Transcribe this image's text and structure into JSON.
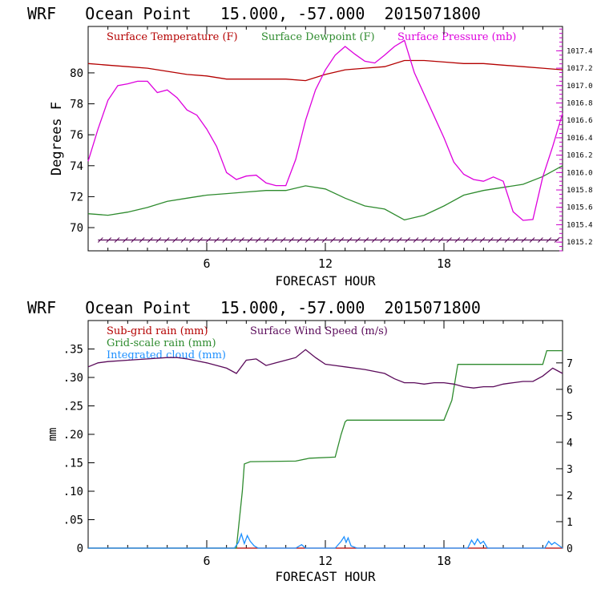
{
  "chart_data": [
    {
      "type": "line",
      "title": "WRF   Ocean Point   15.000, -57.000  2015071800",
      "xlabel": "FORECAST HOUR",
      "ylabel": "Degrees F",
      "xlim": [
        0,
        24
      ],
      "ylim": [
        68.5,
        83
      ],
      "y2lim": [
        1015.1,
        1017.68
      ],
      "x_ticks": [
        6,
        12,
        18
      ],
      "y_ticks": [
        70,
        72,
        74,
        76,
        78,
        80
      ],
      "y2_ticks": [
        1015.2,
        1015.4,
        1015.6,
        1015.8,
        1016.0,
        1016.2,
        1016.4,
        1016.6,
        1016.8,
        1017.0,
        1017.2,
        1017.4
      ],
      "legend": "top-inside",
      "colors": {
        "frame": "#000000",
        "right_axis": "#cc00cc"
      },
      "series": [
        {
          "name": "Surface Temperature (F)",
          "color": "#b40000",
          "axis": "left",
          "x": [
            0,
            1,
            2,
            3,
            4,
            5,
            6,
            7,
            8,
            9,
            10,
            11,
            12,
            13,
            14,
            15,
            16,
            17,
            18,
            19,
            20,
            21,
            22,
            23,
            24
          ],
          "y": [
            80.6,
            80.5,
            80.4,
            80.3,
            80.1,
            79.9,
            79.8,
            79.6,
            79.6,
            79.6,
            79.6,
            79.5,
            79.9,
            80.2,
            80.3,
            80.4,
            80.8,
            80.8,
            80.7,
            80.6,
            80.6,
            80.5,
            80.4,
            80.3,
            80.2
          ]
        },
        {
          "name": "Surface Dewpoint (F)",
          "color": "#2e8b2e",
          "axis": "left",
          "x": [
            0,
            1,
            2,
            3,
            4,
            5,
            6,
            7,
            8,
            9,
            10,
            11,
            12,
            13,
            14,
            15,
            16,
            17,
            18,
            19,
            20,
            21,
            22,
            23,
            24
          ],
          "y": [
            70.9,
            70.8,
            71.0,
            71.3,
            71.7,
            71.9,
            72.1,
            72.2,
            72.3,
            72.4,
            72.4,
            72.7,
            72.5,
            71.9,
            71.4,
            71.2,
            70.5,
            70.8,
            71.4,
            72.1,
            72.4,
            72.6,
            72.8,
            73.3,
            74.0
          ]
        },
        {
          "name": "Surface Pressure (mb)",
          "color": "#dd00dd",
          "axis": "right",
          "x": [
            0,
            0.5,
            1,
            1.5,
            2,
            2.5,
            3,
            3.5,
            4,
            4.5,
            5,
            5.5,
            6,
            6.5,
            7,
            7.5,
            8,
            8.5,
            9,
            9.5,
            10,
            10.5,
            11,
            11.5,
            12,
            12.5,
            13,
            13.5,
            14,
            14.5,
            15,
            15.5,
            16,
            16.5,
            17,
            17.5,
            18,
            18.5,
            19,
            19.5,
            20,
            20.5,
            21,
            21.5,
            22,
            22.5,
            23,
            23.5,
            24
          ],
          "y": [
            1016.13,
            1016.5,
            1016.83,
            1017.0,
            1017.02,
            1017.05,
            1017.05,
            1016.92,
            1016.95,
            1016.86,
            1016.72,
            1016.66,
            1016.5,
            1016.3,
            1016.0,
            1015.92,
            1015.96,
            1015.97,
            1015.88,
            1015.85,
            1015.85,
            1016.15,
            1016.6,
            1016.95,
            1017.18,
            1017.35,
            1017.45,
            1017.36,
            1017.28,
            1017.26,
            1017.35,
            1017.45,
            1017.52,
            1017.15,
            1016.9,
            1016.65,
            1016.4,
            1016.12,
            1015.98,
            1015.92,
            1015.9,
            1015.95,
            1015.9,
            1015.55,
            1015.45,
            1015.46,
            1015.95,
            1016.3,
            1016.68
          ]
        }
      ],
      "wind_barbs": {
        "color": "#5a0a5a",
        "row_value": 69.2,
        "x_start": 0.5,
        "x_end": 23.8,
        "step": 0.42
      }
    },
    {
      "type": "line",
      "title": "WRF   Ocean Point   15.000, -57.000  2015071800",
      "xlabel": "FORECAST HOUR",
      "ylabel": "mm",
      "xlim": [
        0,
        24
      ],
      "ylim": [
        0,
        0.4
      ],
      "y2lim": [
        0,
        8.6
      ],
      "x_ticks": [
        6,
        12,
        18
      ],
      "y_ticks": [
        0,
        0.05,
        0.1,
        0.15,
        0.2,
        0.25,
        0.3,
        0.35
      ],
      "y_tick_labels": [
        "0",
        ".05",
        ".10",
        ".15",
        ".20",
        ".25",
        ".30",
        ".35"
      ],
      "y2_ticks": [
        0,
        1,
        2,
        3,
        4,
        5,
        6,
        7
      ],
      "legend": "top-inside",
      "colors": {
        "frame": "#000000"
      },
      "series": [
        {
          "name": "Sub-grid rain (mm)",
          "color": "#b40000",
          "axis": "left",
          "x": [
            0,
            24
          ],
          "y": [
            0,
            0
          ]
        },
        {
          "name": "Grid-scale rain (mm)",
          "color": "#2e8b2e",
          "axis": "left",
          "x": [
            0,
            7.5,
            7.8,
            7.9,
            8.2,
            10.5,
            11.2,
            12.5,
            12.8,
            13.0,
            13.1,
            18.0,
            18.4,
            18.7,
            20.0,
            23.0,
            23.2,
            24.0
          ],
          "y": [
            0,
            0,
            0.1,
            0.148,
            0.152,
            0.153,
            0.158,
            0.16,
            0.2,
            0.222,
            0.225,
            0.225,
            0.26,
            0.323,
            0.323,
            0.323,
            0.347,
            0.347
          ]
        },
        {
          "name": "Integrated cloud (mm)",
          "color": "#1e90ff",
          "axis": "left",
          "x": [
            0,
            7.4,
            7.6,
            7.75,
            7.9,
            8.05,
            8.2,
            8.4,
            8.6,
            9,
            10.5,
            10.8,
            11,
            12.5,
            12.8,
            12.95,
            13.05,
            13.15,
            13.3,
            13.6,
            19.2,
            19.4,
            19.55,
            19.7,
            19.85,
            20.0,
            20.2,
            23.1,
            23.3,
            23.45,
            23.6,
            24
          ],
          "y": [
            0,
            0,
            0.01,
            0.025,
            0.008,
            0.022,
            0.012,
            0.004,
            0.0,
            0.0,
            0.0,
            0.006,
            0.0,
            0.0,
            0.012,
            0.02,
            0.01,
            0.018,
            0.004,
            0.0,
            0.0,
            0.014,
            0.006,
            0.016,
            0.008,
            0.012,
            0.0,
            0.0,
            0.012,
            0.006,
            0.01,
            0.0
          ]
        },
        {
          "name": "Surface Wind Speed (m/s)",
          "color": "#5a0a5a",
          "axis": "right",
          "x": [
            0,
            0.5,
            1,
            2,
            3,
            4,
            4.5,
            5,
            6,
            7,
            7.5,
            8,
            8.5,
            9,
            9.5,
            10,
            10.5,
            11,
            11.5,
            12,
            12.5,
            13,
            14,
            15,
            15.5,
            16,
            16.5,
            17,
            17.5,
            18,
            18.5,
            19,
            19.5,
            20,
            20.5,
            21,
            21.5,
            22,
            22.5,
            23,
            23.5,
            24
          ],
          "y": [
            6.85,
            7.0,
            7.05,
            7.1,
            7.15,
            7.2,
            7.2,
            7.15,
            7.0,
            6.8,
            6.6,
            7.1,
            7.15,
            6.9,
            7.0,
            7.1,
            7.2,
            7.5,
            7.2,
            6.95,
            6.9,
            6.85,
            6.75,
            6.6,
            6.4,
            6.25,
            6.25,
            6.2,
            6.25,
            6.25,
            6.2,
            6.1,
            6.05,
            6.1,
            6.1,
            6.2,
            6.25,
            6.3,
            6.3,
            6.5,
            6.8,
            6.6
          ]
        }
      ]
    }
  ]
}
